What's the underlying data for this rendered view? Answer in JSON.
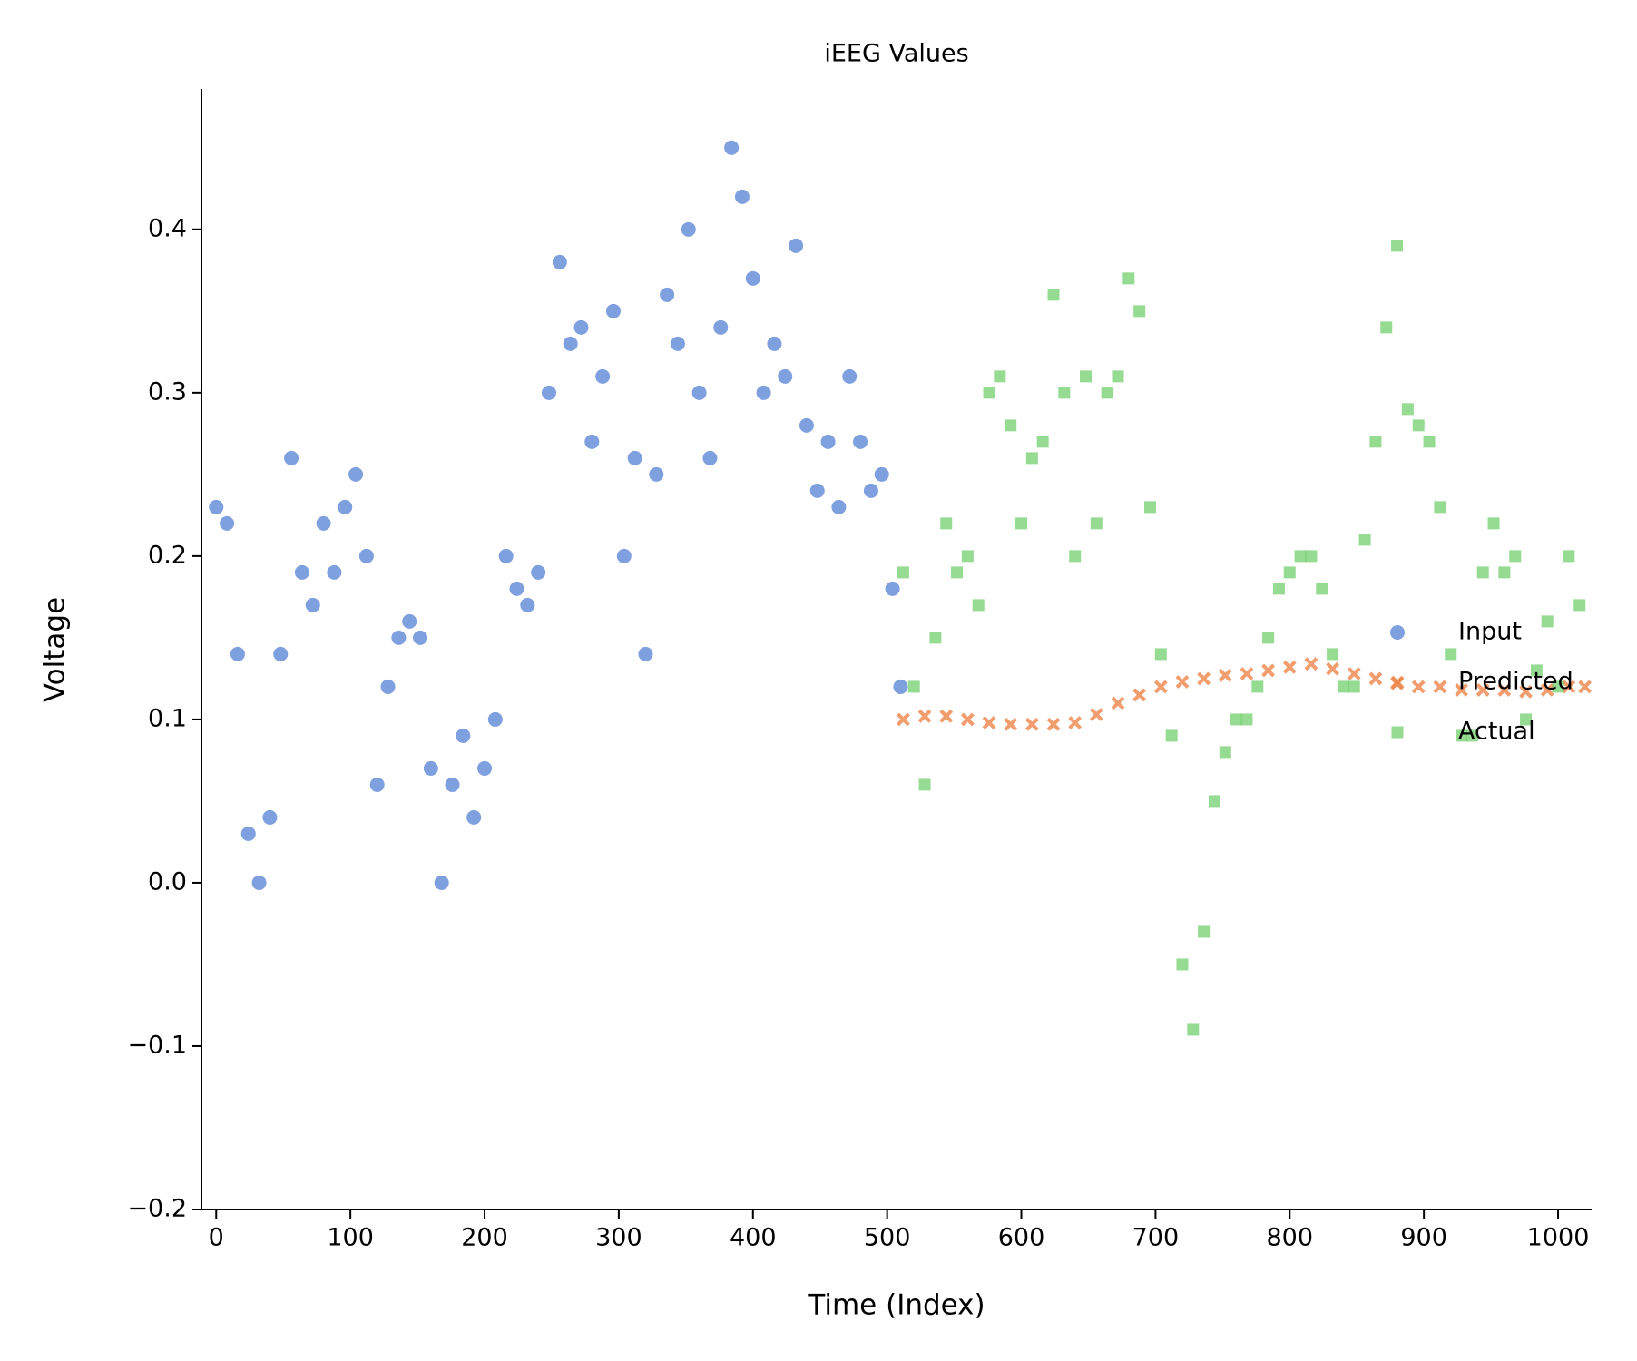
{
  "chart_data": {
    "type": "scatter",
    "title": "iEEG Values",
    "x_label": "Time (Index)",
    "y_label": "Voltage",
    "xlim": [
      -11,
      1025
    ],
    "ylim": [
      -0.2,
      0.486
    ],
    "xticks": [
      0,
      100,
      200,
      300,
      400,
      500,
      600,
      700,
      800,
      900,
      1000
    ],
    "yticks": [
      {
        "value": -0.2,
        "label": "−0.2"
      },
      {
        "value": -0.1,
        "label": "−0.1"
      },
      {
        "value": 0,
        "label": "0.0"
      },
      0.1,
      0.2,
      0.3,
      0.4
    ],
    "grid": false,
    "legend": "center right",
    "series": [
      {
        "name": "Input",
        "color": "#4878d0",
        "marker": "circle",
        "x": [
          0,
          8,
          16,
          24,
          32,
          40,
          48,
          56,
          64,
          72,
          80,
          88,
          96,
          104,
          112,
          120,
          128,
          136,
          144,
          152,
          160,
          168,
          176,
          184,
          192,
          200,
          208,
          216,
          224,
          232,
          240,
          248,
          256,
          264,
          272,
          280,
          288,
          296,
          304,
          312,
          320,
          328,
          336,
          344,
          352,
          360,
          368,
          376,
          384,
          392,
          400,
          408,
          416,
          424,
          432,
          440,
          448,
          456,
          464,
          472,
          480,
          488,
          496,
          504,
          510
        ],
        "values": [
          0.23,
          0.22,
          0.14,
          0.03,
          0.0,
          0.04,
          0.14,
          0.26,
          0.19,
          0.17,
          0.22,
          0.19,
          0.23,
          0.25,
          0.2,
          0.06,
          0.12,
          0.15,
          0.16,
          0.15,
          0.07,
          0.0,
          0.06,
          0.09,
          0.04,
          0.07,
          0.1,
          0.2,
          0.18,
          0.17,
          0.19,
          0.3,
          0.38,
          0.33,
          0.34,
          0.27,
          0.31,
          0.35,
          0.2,
          0.26,
          0.14,
          0.25,
          0.36,
          0.33,
          0.4,
          0.3,
          0.26,
          0.34,
          0.45,
          0.42,
          0.37,
          0.3,
          0.33,
          0.31,
          0.39,
          0.28,
          0.24,
          0.27,
          0.23,
          0.31,
          0.27,
          0.24,
          0.25,
          0.18,
          0.12
        ]
      },
      {
        "name": "Predicted",
        "color": "#ee854a",
        "marker": "x",
        "x": [
          512,
          528,
          544,
          560,
          576,
          592,
          608,
          624,
          640,
          656,
          672,
          688,
          704,
          720,
          736,
          752,
          768,
          784,
          800,
          816,
          832,
          848,
          864,
          880,
          896,
          912,
          928,
          944,
          960,
          976,
          992,
          1008,
          1020
        ],
        "values": [
          0.1,
          0.102,
          0.102,
          0.1,
          0.098,
          0.097,
          0.097,
          0.097,
          0.098,
          0.103,
          0.11,
          0.115,
          0.12,
          0.123,
          0.125,
          0.127,
          0.128,
          0.13,
          0.132,
          0.134,
          0.131,
          0.128,
          0.125,
          0.122,
          0.12,
          0.12,
          0.118,
          0.118,
          0.118,
          0.117,
          0.118,
          0.12,
          0.12
        ]
      },
      {
        "name": "Actual",
        "color": "#6acc64",
        "marker": "square",
        "x": [
          512,
          520,
          528,
          536,
          544,
          552,
          560,
          568,
          576,
          584,
          592,
          600,
          608,
          616,
          624,
          632,
          640,
          648,
          656,
          664,
          672,
          680,
          688,
          696,
          704,
          712,
          720,
          728,
          736,
          744,
          752,
          760,
          768,
          776,
          784,
          792,
          800,
          808,
          816,
          824,
          832,
          840,
          848,
          856,
          864,
          872,
          880,
          888,
          896,
          904,
          912,
          920,
          928,
          936,
          944,
          952,
          960,
          968,
          976,
          984,
          992,
          1000,
          1008,
          1016
        ],
        "values": [
          0.19,
          0.12,
          0.06,
          0.15,
          0.22,
          0.19,
          0.2,
          0.17,
          0.3,
          0.31,
          0.28,
          0.22,
          0.26,
          0.27,
          0.36,
          0.3,
          0.2,
          0.31,
          0.22,
          0.3,
          0.31,
          0.37,
          0.35,
          0.23,
          0.14,
          0.09,
          -0.05,
          -0.09,
          -0.03,
          0.05,
          0.08,
          0.1,
          0.1,
          0.12,
          0.15,
          0.18,
          0.19,
          0.2,
          0.2,
          0.18,
          0.14,
          0.12,
          0.12,
          0.21,
          0.27,
          0.34,
          0.39,
          0.29,
          0.28,
          0.27,
          0.23,
          0.14,
          0.09,
          0.09,
          0.19,
          0.22,
          0.19,
          0.2,
          0.1,
          0.13,
          0.16,
          0.12,
          0.2,
          0.17
        ]
      }
    ]
  }
}
